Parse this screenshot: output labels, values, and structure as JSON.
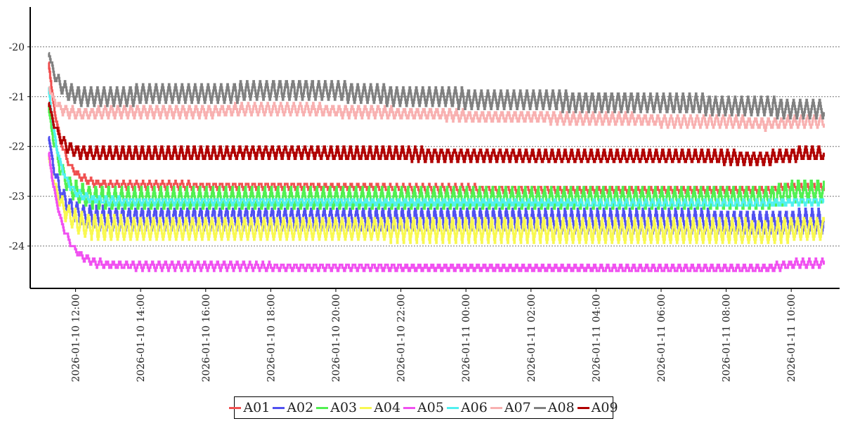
{
  "chart_data": {
    "type": "line",
    "title": "",
    "xlabel": "",
    "ylabel": "",
    "x_start": "2026-01-10 11:10",
    "x_end": "2026-01-11 11:00",
    "ylim": [
      -24.85,
      -19.2
    ],
    "grid": "horizontal dotted",
    "legend_position": "bottom-center",
    "y_ticks": [
      "-20",
      "-21",
      "-22",
      "-23",
      "-24"
    ],
    "x_ticks": [
      "2026-01-10 12:00",
      "2026-01-10 14:00",
      "2026-01-10 16:00",
      "2026-01-10 18:00",
      "2026-01-10 20:00",
      "2026-01-10 22:00",
      "2026-01-11 00:00",
      "2026-01-11 02:00",
      "2026-01-11 04:00",
      "2026-01-11 06:00",
      "2026-01-11 08:00",
      "2026-01-11 10:00"
    ],
    "oscillation_period_min": 12,
    "resolution": 0.0625,
    "series": [
      {
        "name": "A01",
        "color": "#f05050",
        "initial": -20.3,
        "tau_min": 22,
        "swing": 0.07,
        "hourly_mean": [
          -22.78,
          -22.78,
          -22.78,
          -22.78,
          -22.78,
          -22.8,
          -22.8,
          -22.8,
          -22.8,
          -22.82,
          -22.82,
          -22.84,
          -22.84,
          -22.85,
          -22.86,
          -22.86,
          -22.87,
          -22.88,
          -22.88,
          -22.88,
          -22.88,
          -22.88,
          -22.88,
          -22.8
        ]
      },
      {
        "name": "A02",
        "color": "#5050f0",
        "initial": -21.8,
        "tau_min": 20,
        "swing": 0.25,
        "hourly_mean": [
          -23.45,
          -23.45,
          -23.45,
          -23.45,
          -23.45,
          -23.45,
          -23.45,
          -23.45,
          -23.46,
          -23.46,
          -23.47,
          -23.47,
          -23.48,
          -23.48,
          -23.48,
          -23.49,
          -23.5,
          -23.5,
          -23.5,
          -23.5,
          -23.5,
          -23.52,
          -23.55,
          -23.5
        ]
      },
      {
        "name": "A03",
        "color": "#50f050",
        "initial": -21.2,
        "tau_min": 20,
        "swing": 0.25,
        "hourly_mean": [
          -23.05,
          -23.05,
          -23.05,
          -23.05,
          -23.05,
          -23.05,
          -23.05,
          -23.05,
          -23.05,
          -23.05,
          -23.05,
          -23.05,
          -23.05,
          -23.05,
          -23.06,
          -23.06,
          -23.06,
          -23.06,
          -23.06,
          -23.06,
          -23.06,
          -23.06,
          -23.05,
          -22.9
        ]
      },
      {
        "name": "A04",
        "color": "#f8f850",
        "initial": -22.2,
        "tau_min": 22,
        "swing": 0.25,
        "hourly_mean": [
          -23.65,
          -23.65,
          -23.65,
          -23.65,
          -23.65,
          -23.65,
          -23.65,
          -23.65,
          -23.65,
          -23.66,
          -23.66,
          -23.67,
          -23.67,
          -23.68,
          -23.68,
          -23.68,
          -23.7,
          -23.7,
          -23.7,
          -23.7,
          -23.7,
          -23.7,
          -23.72,
          -23.65
        ]
      },
      {
        "name": "A05",
        "color": "#f050f0",
        "initial": -22.1,
        "tau_min": 25,
        "swing": 0.08,
        "hourly_mean": [
          -24.4,
          -24.4,
          -24.4,
          -24.4,
          -24.4,
          -24.4,
          -24.4,
          -24.42,
          -24.42,
          -24.42,
          -24.42,
          -24.43,
          -24.43,
          -24.43,
          -24.44,
          -24.44,
          -24.44,
          -24.45,
          -24.45,
          -24.45,
          -24.45,
          -24.45,
          -24.45,
          -24.35
        ]
      },
      {
        "name": "A06",
        "color": "#50f0f0",
        "initial": -20.8,
        "tau_min": 20,
        "swing": 0.08,
        "hourly_mean": [
          -23.1,
          -23.1,
          -23.1,
          -23.1,
          -23.1,
          -23.1,
          -23.1,
          -23.1,
          -23.1,
          -23.1,
          -23.12,
          -23.12,
          -23.12,
          -23.13,
          -23.13,
          -23.14,
          -23.14,
          -23.15,
          -23.15,
          -23.15,
          -23.15,
          -23.15,
          -23.15,
          -23.1
        ]
      },
      {
        "name": "A07",
        "color": "#f8b0b0",
        "initial": -20.8,
        "tau_min": 15,
        "swing": 0.12,
        "hourly_mean": [
          -21.35,
          -21.35,
          -21.3,
          -21.3,
          -21.3,
          -21.3,
          -21.25,
          -21.25,
          -21.25,
          -21.3,
          -21.3,
          -21.35,
          -21.35,
          -21.4,
          -21.4,
          -21.4,
          -21.45,
          -21.45,
          -21.45,
          -21.5,
          -21.5,
          -21.5,
          -21.55,
          -21.5
        ]
      },
      {
        "name": "A08",
        "color": "#808080",
        "initial": -20.1,
        "tau_min": 15,
        "swing": 0.2,
        "hourly_mean": [
          -20.95,
          -21.0,
          -21.0,
          -20.95,
          -20.95,
          -20.95,
          -20.9,
          -20.85,
          -20.85,
          -20.9,
          -20.95,
          -21.0,
          -21.0,
          -21.05,
          -21.05,
          -21.05,
          -21.1,
          -21.1,
          -21.1,
          -21.15,
          -21.15,
          -21.2,
          -21.2,
          -21.25
        ]
      },
      {
        "name": "A09",
        "color": "#b00000",
        "initial": -21.1,
        "tau_min": 18,
        "swing": 0.15,
        "hourly_mean": [
          -22.15,
          -22.15,
          -22.15,
          -22.15,
          -22.15,
          -22.15,
          -22.12,
          -22.12,
          -22.12,
          -22.15,
          -22.15,
          -22.15,
          -22.17,
          -22.18,
          -22.18,
          -22.2,
          -22.2,
          -22.2,
          -22.2,
          -22.2,
          -22.2,
          -22.22,
          -22.25,
          -22.15
        ]
      }
    ]
  }
}
